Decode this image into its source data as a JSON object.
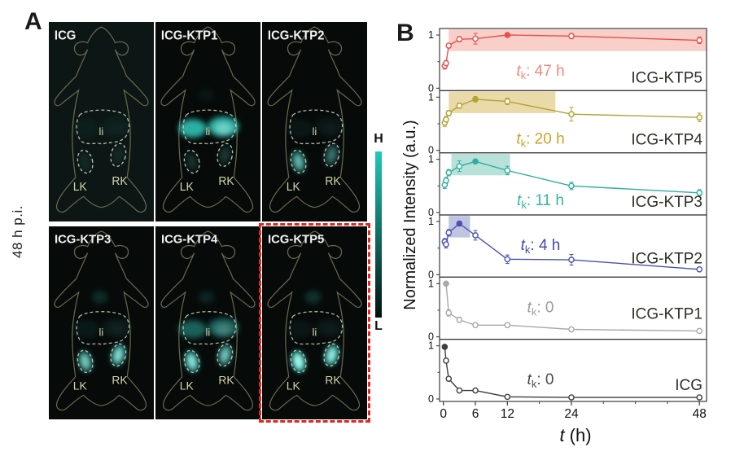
{
  "panel_a": {
    "label": "A",
    "row_label": "48 h p.i.",
    "organ_labels": {
      "liver": "li",
      "left_kidney": "LK",
      "right_kidney": "RK"
    },
    "colorbar": {
      "high_label": "H",
      "low_label": "L",
      "top_color": "#1fc9b7",
      "bottom_color": "#04100d"
    },
    "highlight_color": "#e8231d",
    "signal_color": "#35e2d2",
    "signal_core_color": "#ccfbf3",
    "outline_color": "#6b6b4f",
    "organ_line_color": "#e0e0cc",
    "organ_text_color": "#d6d6ae",
    "title_color": "#f2f2f2",
    "panels": [
      {
        "title": "ICG",
        "liver": 0.05,
        "left_kidney": 0.05,
        "right_kidney": 0.05,
        "chest": 0.0,
        "highlighted": false,
        "bg": "#0c1614"
      },
      {
        "title": "ICG-KTP1",
        "liver": 0.85,
        "left_kidney": 0.1,
        "right_kidney": 0.12,
        "chest": 0.05,
        "highlighted": false,
        "bg": "#060a09"
      },
      {
        "title": "ICG-KTP2",
        "liver": 0.06,
        "left_kidney": 0.55,
        "right_kidney": 0.3,
        "chest": 0.0,
        "highlighted": false,
        "bg": "#060a09"
      },
      {
        "title": "ICG-KTP3",
        "liver": 0.08,
        "left_kidney": 0.65,
        "right_kidney": 0.75,
        "chest": 0.15,
        "highlighted": false,
        "bg": "#060a09"
      },
      {
        "title": "ICG-KTP4",
        "liver": 0.45,
        "left_kidney": 0.8,
        "right_kidney": 0.62,
        "chest": 0.12,
        "highlighted": false,
        "bg": "#060a09"
      },
      {
        "title": "ICG-KTP5",
        "liver": 0.06,
        "left_kidney": 1.0,
        "right_kidney": 0.85,
        "chest": 0.18,
        "highlighted": true,
        "bg": "#060a09"
      }
    ]
  },
  "panel_b": {
    "label": "B",
    "y_axis_label": "Normalized Intensity (a.u.)",
    "x_axis_label_var": "t",
    "x_axis_label_unit": " (h)",
    "tk_var": "t",
    "tk_sub": "k",
    "axis_color": "#3a3a3a",
    "text_color": "#111111",
    "name_color": "#2e2f24"
  },
  "chart_data": {
    "type": "line",
    "title": "",
    "xlabel": "t (h)",
    "ylabel": "Normalized Intensity (a.u.)",
    "xlim": [
      0,
      49.5
    ],
    "x_ticks": [
      0,
      6,
      12,
      24,
      48
    ],
    "x_minor_ticks": [
      18,
      30,
      36,
      42
    ],
    "sub_y_ticks": [
      0,
      1
    ],
    "sub_y_minor_ticks": [
      0.5
    ],
    "sub_ylim": [
      0,
      1.12
    ],
    "legend_position": "inside-right",
    "grid": false,
    "subplots": [
      {
        "name": "ICG-KTP5",
        "tk": "47 h",
        "color": "#e8504a",
        "tk_color": "#f0897b",
        "band_color": "#f8c7c1",
        "band": [
          1,
          48
        ],
        "x": [
          0.25,
          0.5,
          1,
          3,
          6,
          12,
          24,
          48
        ],
        "y": [
          0.42,
          0.47,
          0.8,
          0.92,
          0.93,
          1.0,
          0.98,
          0.9
        ],
        "err": [
          0.06,
          0.05,
          0.04,
          0.05,
          0.1,
          0.03,
          0.05,
          0.06
        ],
        "peak": 5,
        "tk_dy": 20,
        "name_dy": 10
      },
      {
        "name": "ICG-KTP4",
        "tk": "20 h",
        "color": "#b2a133",
        "tk_color": "#cda226",
        "band_color": "#e6d49b",
        "band": [
          1,
          21
        ],
        "x": [
          0.25,
          0.5,
          1,
          3,
          6,
          12,
          24,
          48
        ],
        "y": [
          0.52,
          0.58,
          0.7,
          0.84,
          0.96,
          0.92,
          0.68,
          0.62
        ],
        "err": [
          0.07,
          0.06,
          0.05,
          0.05,
          0.05,
          0.06,
          0.13,
          0.08
        ],
        "peak": 4,
        "tk_dy": 27,
        "name_dy": 10
      },
      {
        "name": "ICG-KTP3",
        "tk": "11 h",
        "color": "#2fae9d",
        "tk_color": "#35b79f",
        "band_color": "#abdcd2",
        "band": [
          1.5,
          12.5
        ],
        "x": [
          0.25,
          0.5,
          1,
          3,
          6,
          12,
          24,
          48
        ],
        "y": [
          0.52,
          0.6,
          0.75,
          0.87,
          0.96,
          0.79,
          0.5,
          0.37
        ],
        "err": [
          0.07,
          0.06,
          0.06,
          0.1,
          0.04,
          0.08,
          0.07,
          0.06
        ],
        "peak": 4,
        "tk_dy": 26,
        "name_dy": 10
      },
      {
        "name": "ICG-KTP2",
        "tk": "4 h",
        "color": "#4a51b1",
        "tk_color": "#3f49b4",
        "band_color": "#b3badd",
        "band": [
          1,
          5
        ],
        "x": [
          0.25,
          0.5,
          1,
          3,
          6,
          12,
          24,
          48
        ],
        "y": [
          0.62,
          0.57,
          0.79,
          0.96,
          0.74,
          0.29,
          0.28,
          0.1
        ],
        "err": [
          0.06,
          0.07,
          0.06,
          0.04,
          0.09,
          0.08,
          0.1,
          0.03
        ],
        "peak": 3,
        "tk_dy": 5,
        "name_dy": 17
      },
      {
        "name": "ICG-KTP1",
        "tk": "0",
        "color": "#a9a9a9",
        "tk_color": "#9b9b9b",
        "band_color": null,
        "band": null,
        "x": [
          0.5,
          1,
          3,
          6,
          12,
          24,
          48
        ],
        "y": [
          1.0,
          0.45,
          0.32,
          0.22,
          0.22,
          0.14,
          0.11
        ],
        "err": [
          0.03,
          0.06,
          0.05,
          0.04,
          0.04,
          0.03,
          0.03
        ],
        "peak": 0,
        "tk_dy": 5,
        "name_dy": 25
      },
      {
        "name": "ICG",
        "tk": "0",
        "color": "#3f3f3f",
        "tk_color": "#4a4a4a",
        "band_color": null,
        "band": null,
        "x": [
          0.25,
          0.5,
          1,
          3,
          6,
          12,
          24,
          48
        ],
        "y": [
          0.98,
          0.72,
          0.38,
          0.16,
          0.16,
          0.04,
          0.03,
          0.03
        ],
        "err": [
          0.03,
          0.04,
          0.04,
          0.03,
          0.03,
          0.02,
          0.02,
          0.02
        ],
        "peak": 0,
        "tk_dy": 17,
        "name_dy": 14
      }
    ]
  }
}
